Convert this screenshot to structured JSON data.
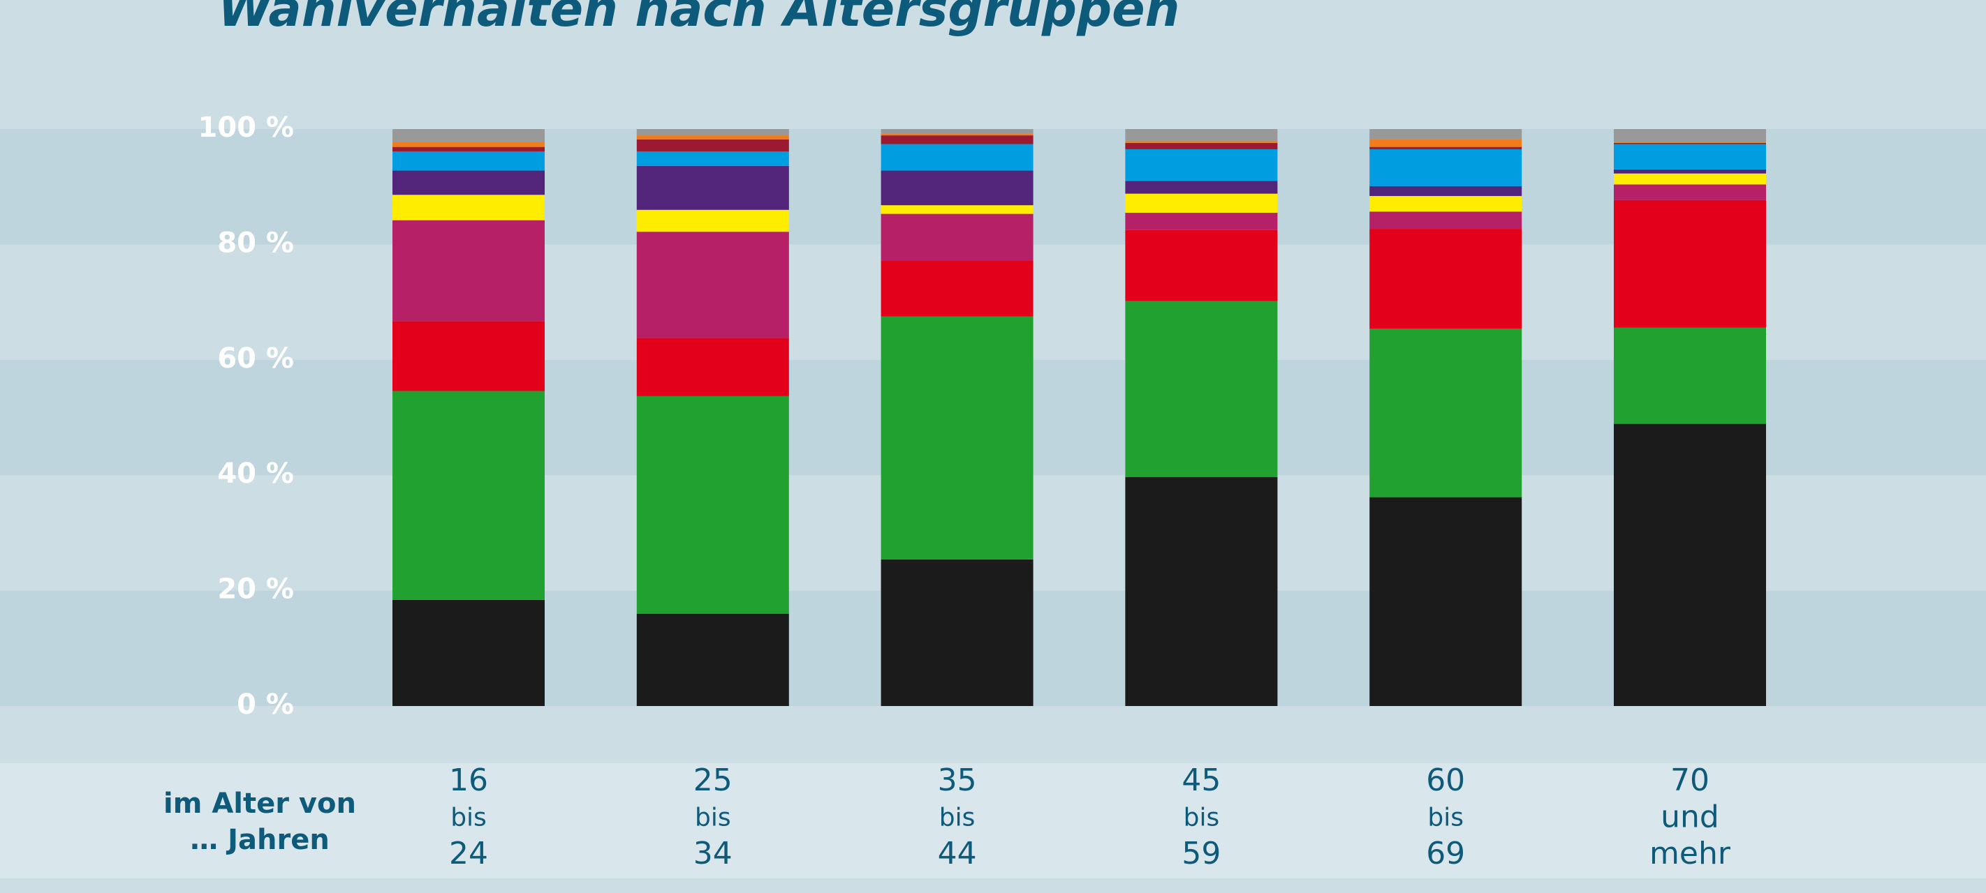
{
  "chart_data": {
    "type": "bar",
    "stacked": true,
    "title": "Wahlverhalten nach Altersgruppen",
    "x_label": [
      "im Alter von",
      "… Jahren"
    ],
    "categories": [
      [
        "16",
        "bis",
        "24"
      ],
      [
        "25",
        "bis",
        "34"
      ],
      [
        "35",
        "bis",
        "44"
      ],
      [
        "45",
        "bis",
        "59"
      ],
      [
        "60",
        "bis",
        "69"
      ],
      [
        "70",
        "und",
        "mehr"
      ]
    ],
    "series": [
      {
        "color": "#1b1b1b",
        "values": [
          18.4,
          16.0,
          25.4,
          39.7,
          36.2,
          48.9
        ]
      },
      {
        "color": "#21a12f",
        "values": [
          36.2,
          37.7,
          42.1,
          30.5,
          29.2,
          16.7
        ]
      },
      {
        "color": "#e2001a",
        "values": [
          12.1,
          10.1,
          9.7,
          12.3,
          17.3,
          22.1
        ]
      },
      {
        "color": "#b52067",
        "values": [
          17.5,
          18.4,
          8.1,
          3.0,
          3.0,
          2.7
        ]
      },
      {
        "color": "#ffed00",
        "values": [
          4.4,
          3.8,
          1.5,
          3.3,
          2.7,
          1.9
        ]
      },
      {
        "color": "#52247a",
        "values": [
          4.2,
          7.6,
          6.0,
          2.2,
          1.7,
          0.7
        ]
      },
      {
        "color": "#009ee0",
        "values": [
          3.3,
          2.5,
          4.6,
          5.5,
          6.4,
          4.4
        ]
      },
      {
        "color": "#9b1a32",
        "values": [
          0.8,
          2.1,
          1.5,
          1.1,
          0.4,
          0.2
        ]
      },
      {
        "color": "#f07d19",
        "values": [
          0.8,
          0.7,
          0.3,
          0.3,
          1.3,
          0.2
        ]
      },
      {
        "color": "#999999",
        "values": [
          2.3,
          1.1,
          0.8,
          2.1,
          1.8,
          2.2
        ]
      }
    ],
    "ylim": [
      0,
      100
    ],
    "yticks": [
      {
        "value": 0,
        "label": "0 %"
      },
      {
        "value": 20,
        "label": "20 %"
      },
      {
        "value": 40,
        "label": "40 %"
      },
      {
        "value": 60,
        "label": "60 %"
      },
      {
        "value": 80,
        "label": "80 %"
      },
      {
        "value": 100,
        "label": "100 %"
      }
    ]
  }
}
